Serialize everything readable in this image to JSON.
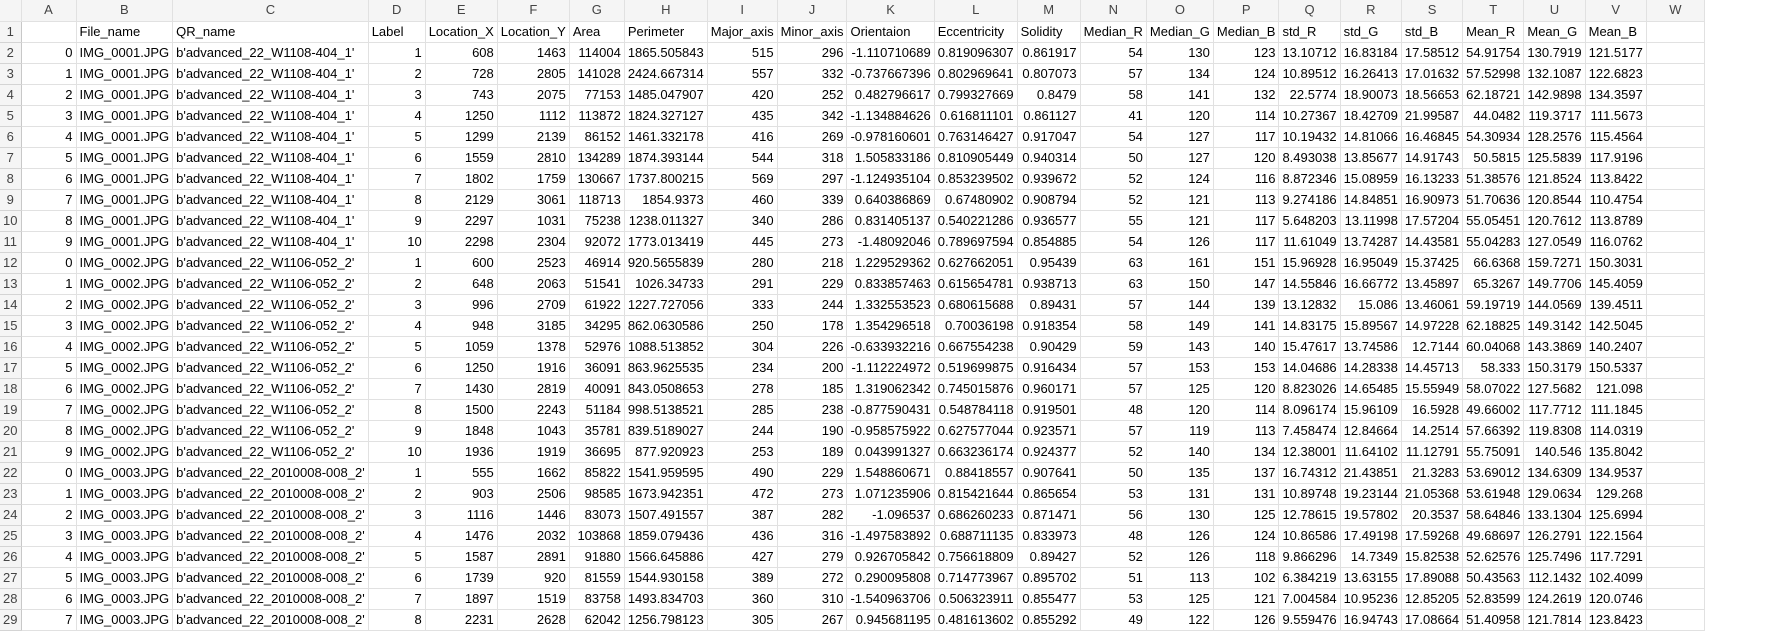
{
  "columns": [
    "A",
    "B",
    "C",
    "D",
    "E",
    "F",
    "G",
    "H",
    "I",
    "J",
    "K",
    "L",
    "M",
    "N",
    "O",
    "P",
    "Q",
    "R",
    "S",
    "T",
    "U",
    "V",
    "W"
  ],
  "header": [
    "",
    "File_name",
    "QR_name",
    "Label",
    "Location_X",
    "Location_Y",
    "Area",
    "Perimeter",
    "Major_axis",
    "Minor_axis",
    "Orientaion",
    "Eccentricity",
    "Solidity",
    "Median_R",
    "Median_G",
    "Median_B",
    "std_R",
    "std_G",
    "std_B",
    "Mean_R",
    "Mean_G",
    "Mean_B",
    ""
  ],
  "rows": [
    [
      "0",
      "IMG_0001.JPG",
      "b'advanced_22_W1108-404_1'",
      "1",
      "608",
      "1463",
      "114004",
      "1865.505843",
      "515",
      "296",
      "-1.110710689",
      "0.819096307",
      "0.861917",
      "54",
      "130",
      "123",
      "13.10712",
      "16.83184",
      "17.58512",
      "54.91754",
      "130.7919",
      "121.5177",
      ""
    ],
    [
      "1",
      "IMG_0001.JPG",
      "b'advanced_22_W1108-404_1'",
      "2",
      "728",
      "2805",
      "141028",
      "2424.667314",
      "557",
      "332",
      "-0.737667396",
      "0.802969641",
      "0.807073",
      "57",
      "134",
      "124",
      "10.89512",
      "16.26413",
      "17.01632",
      "57.52998",
      "132.1087",
      "122.6823",
      ""
    ],
    [
      "2",
      "IMG_0001.JPG",
      "b'advanced_22_W1108-404_1'",
      "3",
      "743",
      "2075",
      "77153",
      "1485.047907",
      "420",
      "252",
      "0.482796617",
      "0.799327669",
      "0.8479",
      "58",
      "141",
      "132",
      "22.5774",
      "18.90073",
      "18.56653",
      "62.18721",
      "142.9898",
      "134.3597",
      ""
    ],
    [
      "3",
      "IMG_0001.JPG",
      "b'advanced_22_W1108-404_1'",
      "4",
      "1250",
      "1112",
      "113872",
      "1824.327127",
      "435",
      "342",
      "-1.134884626",
      "0.616811101",
      "0.861127",
      "41",
      "120",
      "114",
      "10.27367",
      "18.42709",
      "21.99587",
      "44.0482",
      "119.3717",
      "111.5673",
      ""
    ],
    [
      "4",
      "IMG_0001.JPG",
      "b'advanced_22_W1108-404_1'",
      "5",
      "1299",
      "2139",
      "86152",
      "1461.332178",
      "416",
      "269",
      "-0.978160601",
      "0.763146427",
      "0.917047",
      "54",
      "127",
      "117",
      "10.19432",
      "14.81066",
      "16.46845",
      "54.30934",
      "128.2576",
      "115.4564",
      ""
    ],
    [
      "5",
      "IMG_0001.JPG",
      "b'advanced_22_W1108-404_1'",
      "6",
      "1559",
      "2810",
      "134289",
      "1874.393144",
      "544",
      "318",
      "1.505833186",
      "0.810905449",
      "0.940314",
      "50",
      "127",
      "120",
      "8.493038",
      "13.85677",
      "14.91743",
      "50.5815",
      "125.5839",
      "117.9196",
      ""
    ],
    [
      "6",
      "IMG_0001.JPG",
      "b'advanced_22_W1108-404_1'",
      "7",
      "1802",
      "1759",
      "130667",
      "1737.800215",
      "569",
      "297",
      "-1.124935104",
      "0.853239502",
      "0.939672",
      "52",
      "124",
      "116",
      "8.872346",
      "15.08959",
      "16.13233",
      "51.38576",
      "121.8524",
      "113.8422",
      ""
    ],
    [
      "7",
      "IMG_0001.JPG",
      "b'advanced_22_W1108-404_1'",
      "8",
      "2129",
      "3061",
      "118713",
      "1854.9373",
      "460",
      "339",
      "0.640386869",
      "0.67480902",
      "0.908794",
      "52",
      "121",
      "113",
      "9.274186",
      "14.84851",
      "16.90973",
      "51.70636",
      "120.8544",
      "110.4754",
      ""
    ],
    [
      "8",
      "IMG_0001.JPG",
      "b'advanced_22_W1108-404_1'",
      "9",
      "2297",
      "1031",
      "75238",
      "1238.011327",
      "340",
      "286",
      "0.831405137",
      "0.540221286",
      "0.936577",
      "55",
      "121",
      "117",
      "5.648203",
      "13.11998",
      "17.57204",
      "55.05451",
      "120.7612",
      "113.8789",
      ""
    ],
    [
      "9",
      "IMG_0001.JPG",
      "b'advanced_22_W1108-404_1'",
      "10",
      "2298",
      "2304",
      "92072",
      "1773.013419",
      "445",
      "273",
      "-1.48092046",
      "0.789697594",
      "0.854885",
      "54",
      "126",
      "117",
      "11.61049",
      "13.74287",
      "14.43581",
      "55.04283",
      "127.0549",
      "116.0762",
      ""
    ],
    [
      "0",
      "IMG_0002.JPG",
      "b'advanced_22_W1106-052_2'",
      "1",
      "600",
      "2523",
      "46914",
      "920.5655839",
      "280",
      "218",
      "1.229529362",
      "0.627662051",
      "0.95439",
      "63",
      "161",
      "151",
      "15.96928",
      "16.95049",
      "15.37425",
      "66.6368",
      "159.7271",
      "150.3031",
      ""
    ],
    [
      "1",
      "IMG_0002.JPG",
      "b'advanced_22_W1106-052_2'",
      "2",
      "648",
      "2063",
      "51541",
      "1026.34733",
      "291",
      "229",
      "0.833857463",
      "0.615654781",
      "0.938713",
      "63",
      "150",
      "147",
      "14.55846",
      "16.66772",
      "13.45897",
      "65.3267",
      "149.7706",
      "145.4059",
      ""
    ],
    [
      "2",
      "IMG_0002.JPG",
      "b'advanced_22_W1106-052_2'",
      "3",
      "996",
      "2709",
      "61922",
      "1227.727056",
      "333",
      "244",
      "1.332553523",
      "0.680615688",
      "0.89431",
      "57",
      "144",
      "139",
      "13.12832",
      "15.086",
      "13.46061",
      "59.19719",
      "144.0569",
      "139.4511",
      ""
    ],
    [
      "3",
      "IMG_0002.JPG",
      "b'advanced_22_W1106-052_2'",
      "4",
      "948",
      "3185",
      "34295",
      "862.0630586",
      "250",
      "178",
      "1.354296518",
      "0.70036198",
      "0.918354",
      "58",
      "149",
      "141",
      "14.83175",
      "15.89567",
      "14.97228",
      "62.18825",
      "149.3142",
      "142.5045",
      ""
    ],
    [
      "4",
      "IMG_0002.JPG",
      "b'advanced_22_W1106-052_2'",
      "5",
      "1059",
      "1378",
      "52976",
      "1088.513852",
      "304",
      "226",
      "-0.633932216",
      "0.667554238",
      "0.90429",
      "59",
      "143",
      "140",
      "15.47617",
      "13.74586",
      "12.7144",
      "60.04068",
      "143.3869",
      "140.2407",
      ""
    ],
    [
      "5",
      "IMG_0002.JPG",
      "b'advanced_22_W1106-052_2'",
      "6",
      "1250",
      "1916",
      "36091",
      "863.9625535",
      "234",
      "200",
      "-1.112224972",
      "0.519699875",
      "0.916434",
      "57",
      "153",
      "153",
      "14.04686",
      "14.28338",
      "14.45713",
      "58.333",
      "150.3179",
      "150.5337",
      ""
    ],
    [
      "6",
      "IMG_0002.JPG",
      "b'advanced_22_W1106-052_2'",
      "7",
      "1430",
      "2819",
      "40091",
      "843.0508653",
      "278",
      "185",
      "1.319062342",
      "0.745015876",
      "0.960171",
      "57",
      "125",
      "120",
      "8.823026",
      "14.65485",
      "15.55949",
      "58.07022",
      "127.5682",
      "121.098",
      ""
    ],
    [
      "7",
      "IMG_0002.JPG",
      "b'advanced_22_W1106-052_2'",
      "8",
      "1500",
      "2243",
      "51184",
      "998.5138521",
      "285",
      "238",
      "-0.877590431",
      "0.548784118",
      "0.919501",
      "48",
      "120",
      "114",
      "8.096174",
      "15.96109",
      "16.5928",
      "49.66002",
      "117.7712",
      "111.1845",
      ""
    ],
    [
      "8",
      "IMG_0002.JPG",
      "b'advanced_22_W1106-052_2'",
      "9",
      "1848",
      "1043",
      "35781",
      "839.5189027",
      "244",
      "190",
      "-0.958575922",
      "0.627577044",
      "0.923571",
      "57",
      "119",
      "113",
      "7.458474",
      "12.84664",
      "14.2514",
      "57.66392",
      "119.8308",
      "114.0319",
      ""
    ],
    [
      "9",
      "IMG_0002.JPG",
      "b'advanced_22_W1106-052_2'",
      "10",
      "1936",
      "1919",
      "36695",
      "877.920923",
      "253",
      "189",
      "0.043991327",
      "0.663236174",
      "0.924377",
      "52",
      "140",
      "134",
      "12.38001",
      "11.64102",
      "11.12791",
      "55.75091",
      "140.546",
      "135.8042",
      ""
    ],
    [
      "0",
      "IMG_0003.JPG",
      "b'advanced_22_2010008-008_2'",
      "1",
      "555",
      "1662",
      "85822",
      "1541.959595",
      "490",
      "229",
      "1.548860671",
      "0.88418557",
      "0.907641",
      "50",
      "135",
      "137",
      "16.74312",
      "21.43851",
      "21.3283",
      "53.69012",
      "134.6309",
      "134.9537",
      ""
    ],
    [
      "1",
      "IMG_0003.JPG",
      "b'advanced_22_2010008-008_2'",
      "2",
      "903",
      "2506",
      "98585",
      "1673.942351",
      "472",
      "273",
      "1.071235906",
      "0.815421644",
      "0.865654",
      "53",
      "131",
      "131",
      "10.89748",
      "19.23144",
      "21.05368",
      "53.61948",
      "129.0634",
      "129.268",
      ""
    ],
    [
      "2",
      "IMG_0003.JPG",
      "b'advanced_22_2010008-008_2'",
      "3",
      "1116",
      "1446",
      "83073",
      "1507.491557",
      "387",
      "282",
      "-1.096537",
      "0.686260233",
      "0.871471",
      "56",
      "130",
      "125",
      "12.78615",
      "19.57802",
      "20.3537",
      "58.64846",
      "133.1304",
      "125.6994",
      ""
    ],
    [
      "3",
      "IMG_0003.JPG",
      "b'advanced_22_2010008-008_2'",
      "4",
      "1476",
      "2032",
      "103868",
      "1859.079436",
      "436",
      "316",
      "-1.497583892",
      "0.688711135",
      "0.833973",
      "48",
      "126",
      "124",
      "10.86586",
      "17.49198",
      "17.59268",
      "49.68697",
      "126.2791",
      "122.1564",
      ""
    ],
    [
      "4",
      "IMG_0003.JPG",
      "b'advanced_22_2010008-008_2'",
      "5",
      "1587",
      "2891",
      "91880",
      "1566.645886",
      "427",
      "279",
      "0.926705842",
      "0.756618809",
      "0.89427",
      "52",
      "126",
      "118",
      "9.866296",
      "14.7349",
      "15.82538",
      "52.62576",
      "125.7496",
      "117.7291",
      ""
    ],
    [
      "5",
      "IMG_0003.JPG",
      "b'advanced_22_2010008-008_2'",
      "6",
      "1739",
      "920",
      "81559",
      "1544.930158",
      "389",
      "272",
      "0.290095808",
      "0.714773967",
      "0.895702",
      "51",
      "113",
      "102",
      "6.384219",
      "13.63155",
      "17.89088",
      "50.43563",
      "112.1432",
      "102.4099",
      ""
    ],
    [
      "6",
      "IMG_0003.JPG",
      "b'advanced_22_2010008-008_2'",
      "7",
      "1897",
      "1519",
      "83758",
      "1493.834703",
      "360",
      "310",
      "-1.540963706",
      "0.506323911",
      "0.855477",
      "53",
      "125",
      "121",
      "7.004584",
      "10.95236",
      "12.85205",
      "52.83599",
      "124.2619",
      "120.0746",
      ""
    ],
    [
      "7",
      "IMG_0003.JPG",
      "b'advanced_22_2010008-008_2'",
      "8",
      "2231",
      "2628",
      "62042",
      "1256.798123",
      "305",
      "267",
      "0.945681195",
      "0.481613602",
      "0.855292",
      "49",
      "122",
      "126",
      "9.559476",
      "16.94743",
      "17.08664",
      "51.40958",
      "121.7814",
      "123.8423",
      ""
    ]
  ]
}
